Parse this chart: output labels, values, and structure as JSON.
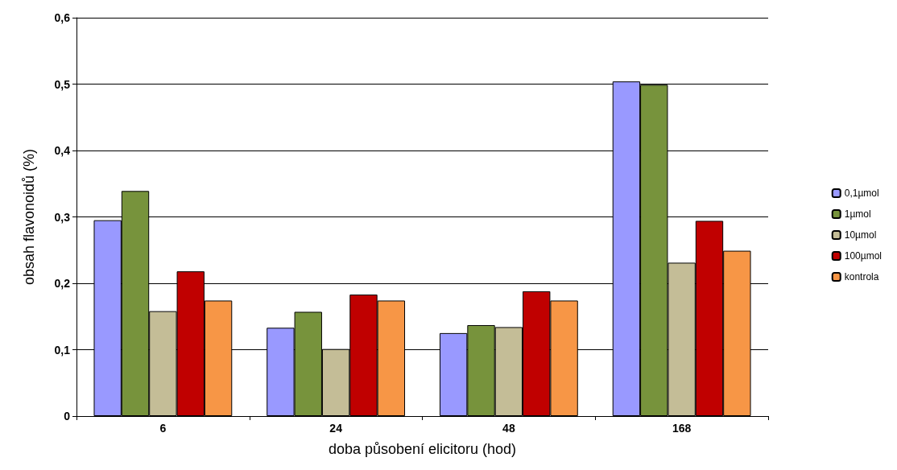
{
  "chart_data": {
    "type": "bar",
    "xlabel": "doba působení elicitoru (hod)",
    "ylabel": "obsah flavonoidů (%)",
    "categories": [
      "6",
      "24",
      "48",
      "168"
    ],
    "series": [
      {
        "name": "0,1µmol",
        "color": "#9999ff",
        "values": [
          0.295,
          0.133,
          0.125,
          0.504
        ]
      },
      {
        "name": "1µmol",
        "color": "#77933c",
        "values": [
          0.339,
          0.157,
          0.137,
          0.499
        ]
      },
      {
        "name": "10µmol",
        "color": "#c4bd97",
        "values": [
          0.158,
          0.101,
          0.134,
          0.231
        ]
      },
      {
        "name": "100µmol",
        "color": "#c00000",
        "values": [
          0.218,
          0.183,
          0.188,
          0.294
        ]
      },
      {
        "name": "kontrola",
        "color": "#f79646",
        "values": [
          0.174,
          0.174,
          0.174,
          0.249
        ]
      }
    ],
    "ylim": [
      0,
      0.6
    ],
    "yticks": [
      {
        "value": 0,
        "label": "0"
      },
      {
        "value": 0.1,
        "label": "0,1"
      },
      {
        "value": 0.2,
        "label": "0,2"
      },
      {
        "value": 0.3,
        "label": "0,3"
      },
      {
        "value": 0.4,
        "label": "0,4"
      },
      {
        "value": 0.5,
        "label": "0,5"
      },
      {
        "value": 0.6,
        "label": "0,6"
      }
    ],
    "grid": "y",
    "legend": "right"
  }
}
